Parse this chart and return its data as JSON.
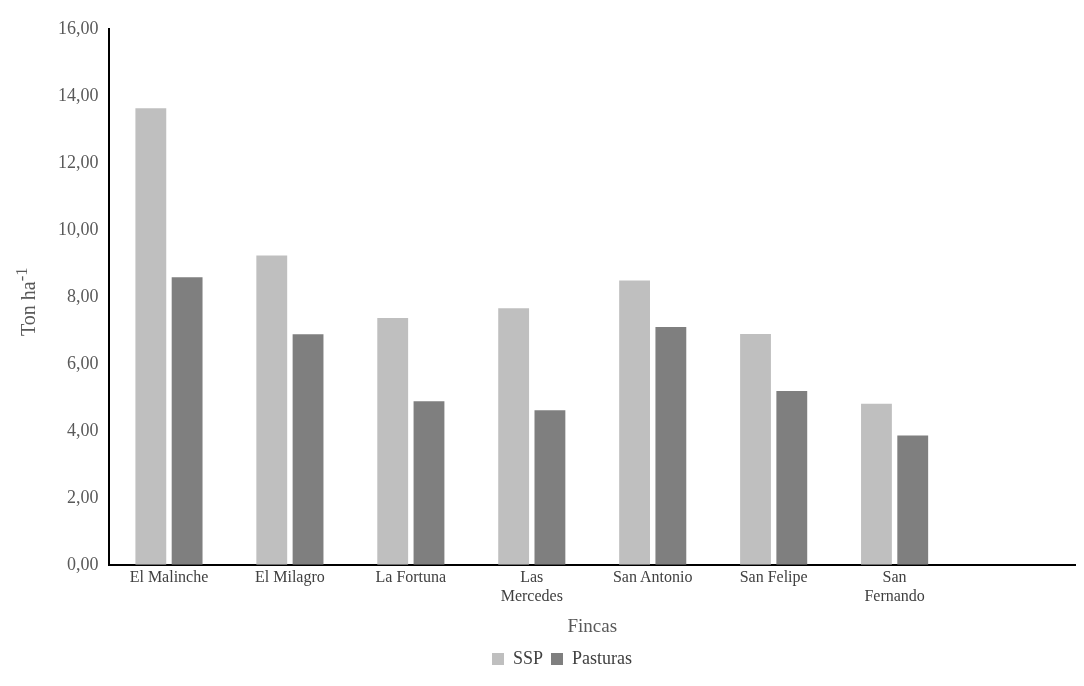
{
  "chart_data": {
    "type": "bar",
    "xlabel": "Fincas",
    "ylabel": "Ton ha$^{-1}$",
    "categories": [
      "El Malinche",
      "El Milagro",
      "La Fortuna",
      "Las Mercedes",
      "San Antonio",
      "San Felipe",
      "San Fernando",
      null
    ],
    "series": [
      {
        "name": "SSP",
        "color": "#bfbfbf",
        "values": [
          13.63,
          9.23,
          7.37,
          7.66,
          8.49,
          6.89,
          4.81,
          null
        ]
      },
      {
        "name": "Pasturas",
        "color": "#7f7f7f",
        "values": [
          8.58,
          6.88,
          4.88,
          4.61,
          7.1,
          5.19,
          3.86,
          null
        ]
      }
    ],
    "ylim": [
      0,
      16
    ],
    "yticks": [
      {
        "value": 0,
        "label": "0,00"
      },
      {
        "value": 2,
        "label": "2,00"
      },
      {
        "value": 4,
        "label": "4,00"
      },
      {
        "value": 6,
        "label": "6,00"
      },
      {
        "value": 8,
        "label": "8,00"
      },
      {
        "value": 10,
        "label": "10,00"
      },
      {
        "value": 12,
        "label": "12,00"
      },
      {
        "value": 14,
        "label": "14,00"
      },
      {
        "value": 16,
        "label": "16,00"
      }
    ],
    "grid": false,
    "legend": "bottom"
  }
}
